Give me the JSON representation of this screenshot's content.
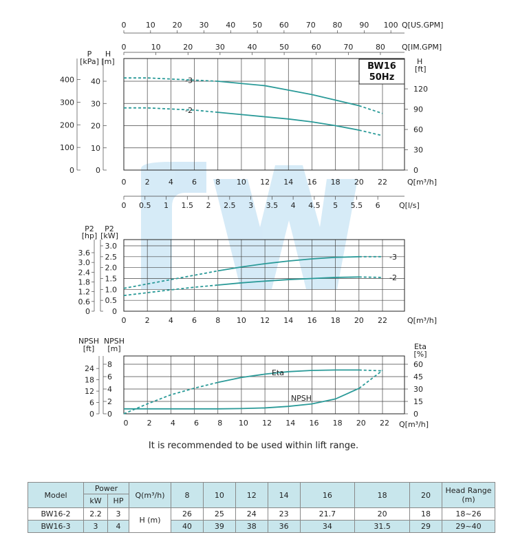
{
  "note": "It is recommended to be used within lift range.",
  "chart_data": [
    {
      "type": "line",
      "badge": [
        "BW16",
        "50Hz"
      ],
      "x_axis": {
        "label": "Q[m³/h]",
        "ticks": [
          0,
          2,
          4,
          6,
          8,
          10,
          12,
          14,
          16,
          18,
          20,
          22
        ]
      },
      "top_axes": [
        {
          "label": "Q[US.GPM]",
          "ticks": [
            0,
            10,
            20,
            30,
            40,
            50,
            60,
            70,
            80,
            90,
            100
          ]
        },
        {
          "label": "Q[IM.GPM]",
          "ticks": [
            0,
            10,
            20,
            30,
            40,
            50,
            60,
            70,
            80
          ]
        }
      ],
      "bottom_axis2": {
        "label": "Q[l/s]",
        "ticks": [
          "0",
          "0.5",
          "1",
          "1.5",
          "2",
          "2.5",
          "3",
          "3.5",
          "4",
          "4.5",
          "5",
          "5.5",
          "6"
        ]
      },
      "left_axes": [
        {
          "label": [
            "P",
            "[kPa]"
          ],
          "ticks": [
            0,
            100,
            200,
            300,
            400
          ]
        },
        {
          "label": [
            "H",
            "[m]"
          ],
          "ticks": [
            0,
            10,
            20,
            30,
            40
          ]
        }
      ],
      "right_axis": {
        "label": [
          "H",
          "[ft]"
        ],
        "ticks": [
          0,
          30,
          60,
          90,
          120
        ]
      },
      "series": [
        {
          "name": "-3",
          "x": [
            0,
            2,
            4,
            6,
            8,
            10,
            12,
            14,
            16,
            18,
            20,
            22
          ],
          "y": [
            41.5,
            41.5,
            41,
            40.5,
            40,
            39,
            38,
            36,
            34,
            31.5,
            29,
            25.5
          ]
        },
        {
          "name": "-2",
          "x": [
            0,
            2,
            4,
            6,
            8,
            10,
            12,
            14,
            16,
            18,
            20,
            22
          ],
          "y": [
            28,
            28,
            27.5,
            27,
            26,
            25,
            24,
            23,
            21.7,
            20,
            18,
            15.5
          ]
        }
      ]
    },
    {
      "type": "line",
      "x_axis": {
        "label": "Q[m³/h]",
        "ticks": [
          0,
          2,
          4,
          6,
          8,
          10,
          12,
          14,
          16,
          18,
          20,
          22
        ]
      },
      "left_axes": [
        {
          "label": [
            "P2",
            "[hp]"
          ],
          "ticks": [
            "0",
            "0.6",
            "1.2",
            "1.8",
            "2.4",
            "3.0",
            "3.6"
          ]
        },
        {
          "label": [
            "P2",
            "[kW]"
          ],
          "ticks": [
            "0",
            "0.5",
            "1.0",
            "1.5",
            "2.0",
            "2.5",
            "3.0"
          ]
        }
      ],
      "series": [
        {
          "name": "-3",
          "x": [
            0,
            2,
            4,
            6,
            8,
            10,
            12,
            14,
            16,
            18,
            20,
            22
          ],
          "y": [
            1.05,
            1.25,
            1.45,
            1.65,
            1.85,
            2.03,
            2.18,
            2.3,
            2.4,
            2.47,
            2.5,
            2.5
          ]
        },
        {
          "name": "-2",
          "x": [
            0,
            2,
            4,
            6,
            8,
            10,
            12,
            14,
            16,
            18,
            20,
            22
          ],
          "y": [
            0.72,
            0.85,
            0.98,
            1.1,
            1.2,
            1.3,
            1.38,
            1.45,
            1.5,
            1.55,
            1.57,
            1.55
          ]
        }
      ]
    },
    {
      "type": "line",
      "x_axis": {
        "label": "Q[m³/h]",
        "ticks": [
          0,
          2,
          4,
          6,
          8,
          10,
          12,
          14,
          16,
          18,
          20,
          22
        ]
      },
      "left_axes": [
        {
          "label": [
            "NPSH",
            "[ft]"
          ],
          "ticks": [
            0,
            6,
            12,
            18,
            24
          ]
        },
        {
          "label": [
            "NPSH",
            "[m]"
          ],
          "ticks": [
            0,
            2,
            4,
            6,
            8
          ]
        }
      ],
      "right_axis": {
        "label": [
          "Eta",
          "[%]"
        ],
        "ticks": [
          0,
          15,
          30,
          45,
          60
        ]
      },
      "series": [
        {
          "name": "Eta",
          "x": [
            0,
            2,
            4,
            6,
            8,
            10,
            12,
            14,
            16,
            18,
            20,
            22
          ],
          "y": [
            0,
            12,
            23,
            31,
            38,
            44,
            48,
            51,
            52.5,
            53,
            53,
            52
          ]
        },
        {
          "name": "NPSH",
          "x": [
            0,
            2,
            4,
            6,
            8,
            10,
            12,
            14,
            16,
            18,
            20,
            22
          ],
          "y": [
            0.8,
            0.8,
            0.8,
            0.8,
            0.8,
            0.85,
            0.95,
            1.2,
            1.6,
            2.4,
            4.1,
            7
          ]
        }
      ]
    }
  ],
  "table": {
    "model_h": "Model",
    "power_h": "Power",
    "kw_h": "kW",
    "hp_h": "HP",
    "q_h": "Q(m³/h)",
    "q_cols": [
      "8",
      "10",
      "12",
      "14",
      "16",
      "18",
      "20"
    ],
    "range_h": "Head Range (m)",
    "h_label": "H (m)",
    "rows": [
      {
        "model": "BW16-2",
        "kw": "2.2",
        "hp": "3",
        "vals": [
          "26",
          "25",
          "24",
          "23",
          "21.7",
          "20",
          "18"
        ],
        "range": "18~26"
      },
      {
        "model": "BW16-3",
        "kw": "3",
        "hp": "4",
        "vals": [
          "40",
          "39",
          "38",
          "36",
          "34",
          "31.5",
          "29"
        ],
        "range": "29~40"
      }
    ]
  }
}
